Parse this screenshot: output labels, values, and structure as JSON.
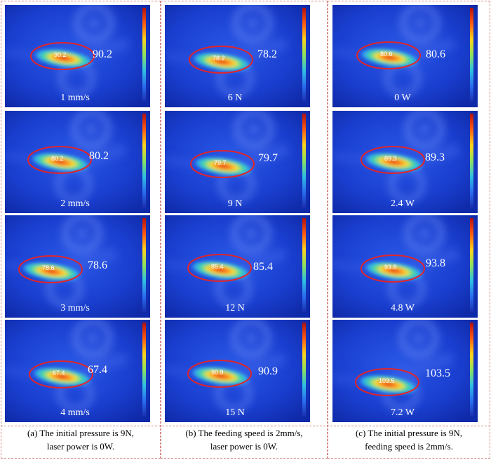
{
  "columns": [
    {
      "caption_line1": "(a) The initial pressure is 9N,",
      "caption_line2": "laser power is 0W.",
      "panels": [
        {
          "condition": "1 mm/s",
          "peak_temp": "90.2"
        },
        {
          "condition": "2 mm/s",
          "peak_temp": "80.2"
        },
        {
          "condition": "3 mm/s",
          "peak_temp": "78.6"
        },
        {
          "condition": "4 mm/s",
          "peak_temp": "67.4"
        }
      ]
    },
    {
      "caption_line1": "(b) The feeding speed is 2mm/s,",
      "caption_line2": "laser power is 0W.",
      "panels": [
        {
          "condition": "6 N",
          "peak_temp": "78.2"
        },
        {
          "condition": "9 N",
          "peak_temp": "79.7"
        },
        {
          "condition": "12 N",
          "peak_temp": "85.4"
        },
        {
          "condition": "15 N",
          "peak_temp": "90.9"
        }
      ]
    },
    {
      "caption_line1": "(c) The initial pressure is 9N,",
      "caption_line2": "feeding speed is 2mm/s.",
      "panels": [
        {
          "condition": "0 W",
          "peak_temp": "80.6"
        },
        {
          "condition": "2.4 W",
          "peak_temp": "89.3"
        },
        {
          "condition": "4.8 W",
          "peak_temp": "93.8"
        },
        {
          "condition": "7.2 W",
          "peak_temp": "103.5"
        }
      ]
    }
  ],
  "colors": {
    "background_blue": "#1537c9",
    "ellipse": "#e0252b",
    "frame": "#d98a8a"
  }
}
